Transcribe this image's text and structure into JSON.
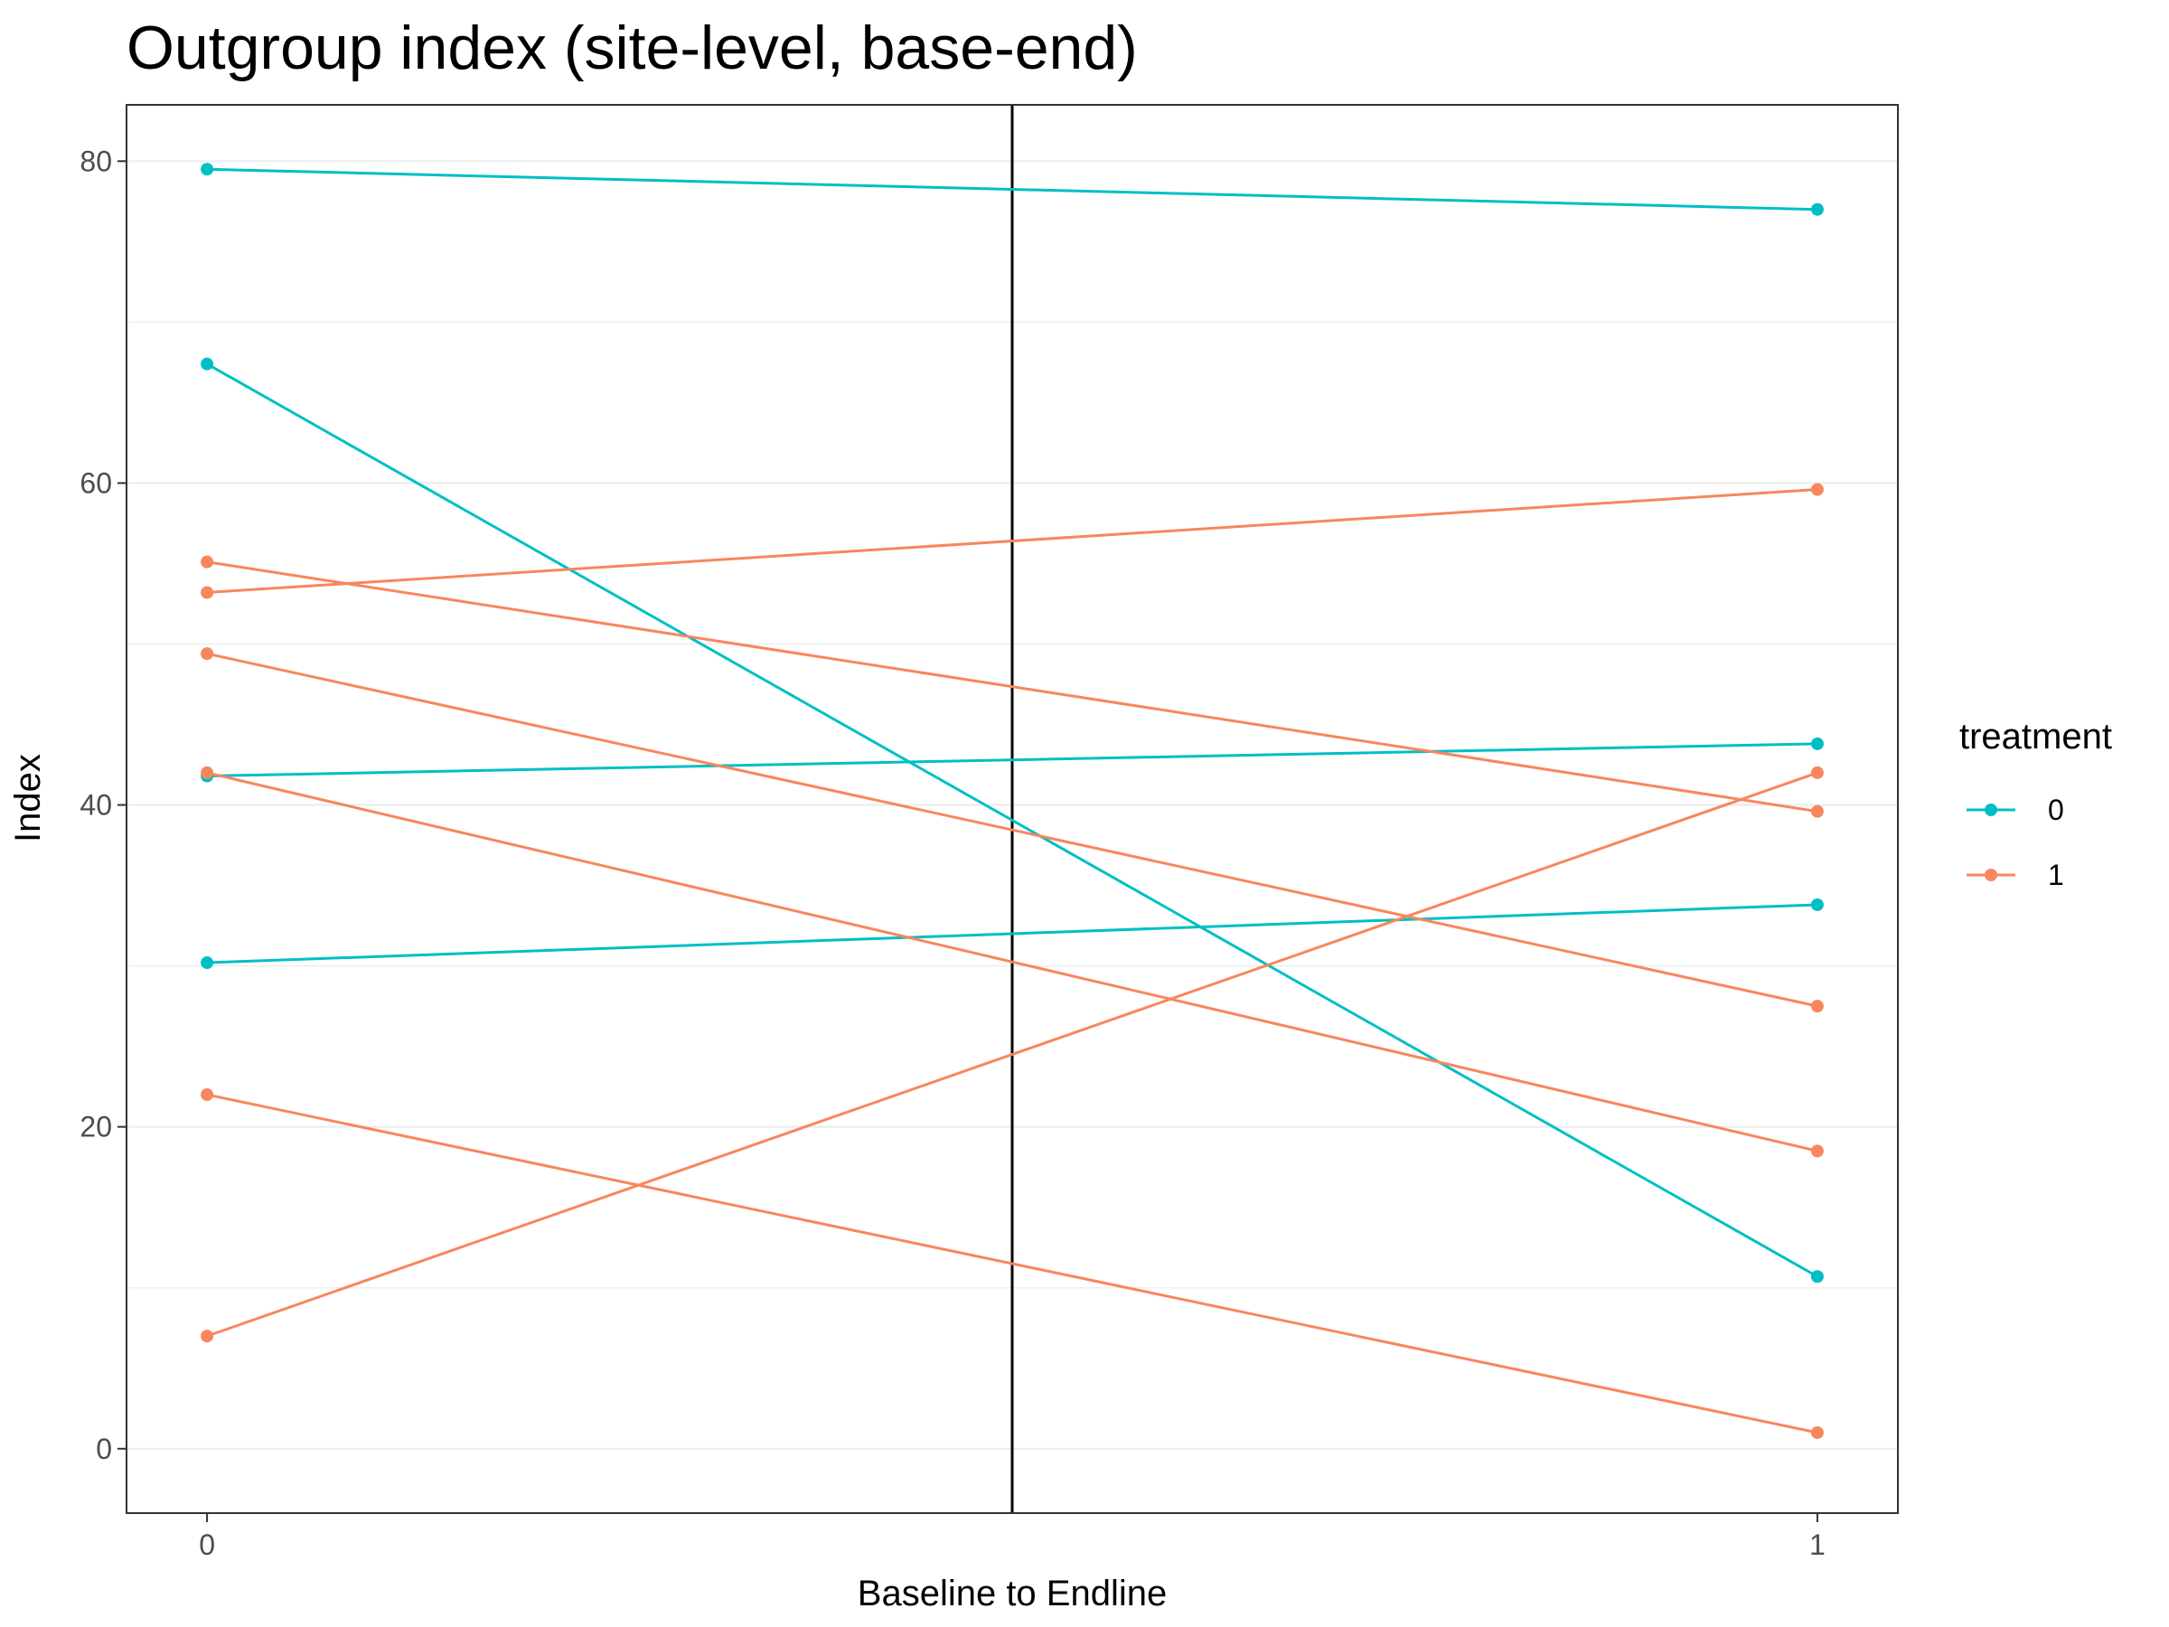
{
  "chart_data": {
    "type": "line",
    "title": "Outgroup index (site-level, base-end)",
    "xlabel": "Baseline to Endline",
    "ylabel": "Index",
    "x": [
      0,
      1
    ],
    "x_ticks": [
      "0",
      "1"
    ],
    "y_ticks": [
      "0",
      "20",
      "40",
      "60",
      "80"
    ],
    "xlim": [
      -0.05,
      1.05
    ],
    "ylim": [
      -4,
      83.5
    ],
    "vline_x": 0.5,
    "grid": "horizontal major and minor",
    "legend": {
      "title": "treatment",
      "position": "right",
      "entries": [
        {
          "label": "0",
          "color": "#00BFC4"
        },
        {
          "label": "1",
          "color": "#F8865E"
        }
      ]
    },
    "series": [
      {
        "treatment": "0",
        "color": "#00BFC4",
        "values": [
          79.5,
          77.0
        ]
      },
      {
        "treatment": "0",
        "color": "#00BFC4",
        "values": [
          67.4,
          10.7
        ]
      },
      {
        "treatment": "0",
        "color": "#00BFC4",
        "values": [
          41.8,
          43.8
        ]
      },
      {
        "treatment": "0",
        "color": "#00BFC4",
        "values": [
          30.2,
          33.8
        ]
      },
      {
        "treatment": "1",
        "color": "#F8865E",
        "values": [
          53.2,
          59.6
        ]
      },
      {
        "treatment": "1",
        "color": "#F8865E",
        "values": [
          55.1,
          39.6
        ]
      },
      {
        "treatment": "1",
        "color": "#F8865E",
        "values": [
          49.4,
          27.5
        ]
      },
      {
        "treatment": "1",
        "color": "#F8865E",
        "values": [
          42.0,
          18.5
        ]
      },
      {
        "treatment": "1",
        "color": "#F8865E",
        "values": [
          22.0,
          1.0
        ]
      },
      {
        "treatment": "1",
        "color": "#F8865E",
        "values": [
          7.0,
          42.0
        ]
      }
    ]
  }
}
